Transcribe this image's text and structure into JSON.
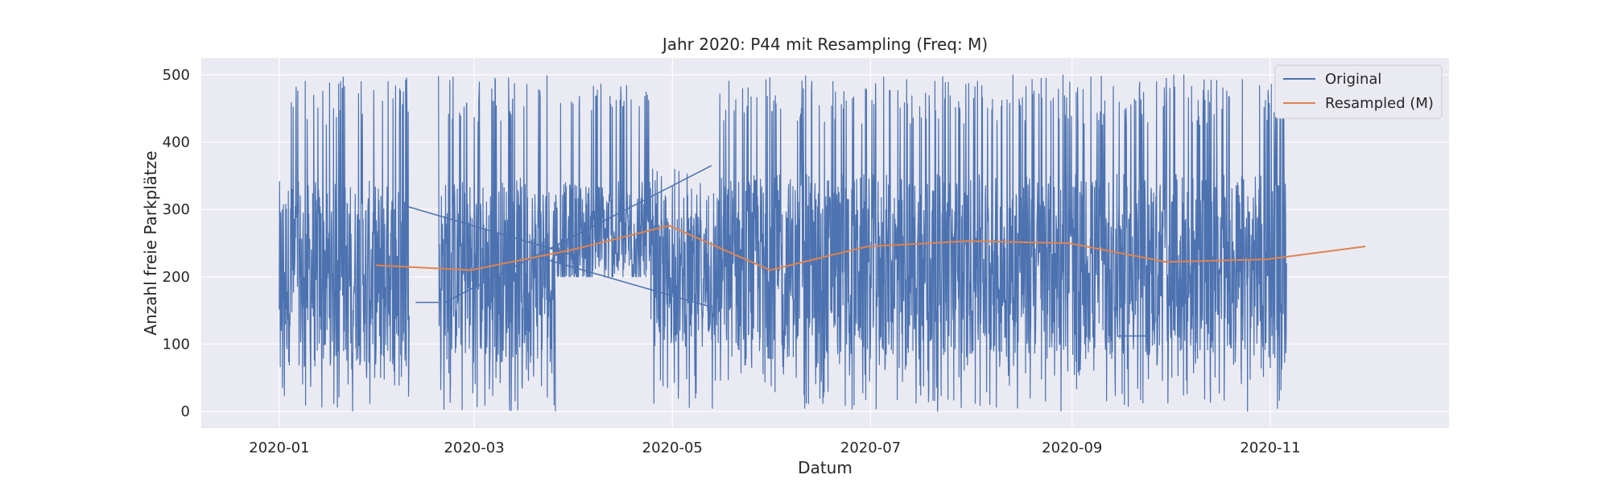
{
  "chart_data": {
    "type": "line",
    "title": "Jahr 2020: P44 mit Resampling (Freq: M)",
    "xlabel": "Datum",
    "ylabel": "Anzahl freie Parkplätze",
    "xlim": [
      "2019-12-08",
      "2020-12-26"
    ],
    "ylim": [
      -25,
      525
    ],
    "x_ticks": [
      "2020-01",
      "2020-03",
      "2020-05",
      "2020-07",
      "2020-09",
      "2020-11"
    ],
    "y_ticks": [
      0,
      100,
      200,
      300,
      400,
      500
    ],
    "grid": true,
    "legend_position": "top-right",
    "colors": {
      "background": "#eaeaf2",
      "grid": "#ffffff",
      "original": "#4c72b0",
      "resampled": "#dd8452"
    },
    "series": [
      {
        "name": "Original",
        "color": "#4c72b0",
        "segments": [
          {
            "start": "2020-01-01",
            "end": "2020-02-10",
            "low": 0,
            "high": 500,
            "center": 205
          },
          {
            "start": "2020-02-19",
            "end": "2020-03-26",
            "low": 0,
            "high": 500,
            "center": 210
          },
          {
            "start": "2020-03-26",
            "end": "2020-04-24",
            "low": 200,
            "high": 490,
            "center": 262
          },
          {
            "start": "2020-04-24",
            "end": "2020-05-15",
            "low": 0,
            "high": 360,
            "center": 195
          },
          {
            "start": "2020-05-15",
            "end": "2020-11-06",
            "low": 0,
            "high": 500,
            "center": 215
          }
        ],
        "connectors": [
          {
            "x": [
              "2020-02-09",
              "2020-04-02"
            ],
            "y": [
              305,
              230
            ]
          },
          {
            "x": [
              "2020-02-12",
              "2020-02-19"
            ],
            "y": [
              162,
              162
            ]
          },
          {
            "x": [
              "2020-02-21",
              "2020-05-13"
            ],
            "y": [
              162,
              365
            ]
          },
          {
            "x": [
              "2020-03-20",
              "2020-05-13"
            ],
            "y": [
              230,
              155
            ]
          },
          {
            "x": [
              "2020-09-15",
              "2020-09-25"
            ],
            "y": [
              112,
              112
            ]
          }
        ]
      },
      {
        "name": "Resampled (M)",
        "color": "#dd8452",
        "x": [
          "2020-01-31",
          "2020-02-29",
          "2020-03-31",
          "2020-04-30",
          "2020-05-31",
          "2020-06-30",
          "2020-07-31",
          "2020-08-31",
          "2020-09-30",
          "2020-10-31",
          "2020-11-30"
        ],
        "values": [
          217,
          210,
          240,
          276,
          210,
          245,
          253,
          250,
          222,
          226,
          245
        ]
      }
    ]
  }
}
